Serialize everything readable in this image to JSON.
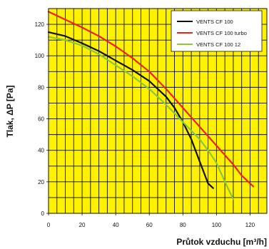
{
  "chart_data": {
    "type": "line",
    "xlabel": "Průtok vzduchu [m³/h]",
    "ylabel": "Tlak, ΔP [Pa]",
    "xlim": [
      0,
      130
    ],
    "ylim": [
      0,
      130
    ],
    "x_ticks": [
      "0",
      "20",
      "40",
      "60",
      "80",
      "100",
      "120"
    ],
    "y_ticks": [
      "0",
      "20",
      "40",
      "60",
      "80",
      "100",
      "120"
    ],
    "grid": true,
    "legend_position": "top-right",
    "series": [
      {
        "name": "VENTS CF 100",
        "color": "#111111",
        "x": [
          0,
          10,
          20,
          30,
          40,
          50,
          60,
          70,
          75,
          80,
          85,
          90,
          95,
          98
        ],
        "y": [
          115,
          112.5,
          108,
          103,
          97,
          91,
          84,
          74,
          67,
          58,
          47,
          33,
          19,
          16
        ]
      },
      {
        "name": "VENTS CF 100 turbo",
        "color": "#e8251e",
        "x": [
          0,
          10,
          20,
          30,
          40,
          50,
          60,
          70,
          80,
          90,
          100,
          110,
          115,
          122
        ],
        "y": [
          128,
          123,
          118,
          112.5,
          106,
          98.5,
          90,
          79,
          67,
          55,
          43,
          31,
          24,
          17
        ]
      },
      {
        "name": "VENTS CF 100 12",
        "color": "#8cc63f",
        "x": [
          0,
          10,
          20,
          30,
          40,
          50,
          60,
          70,
          80,
          90,
          95,
          100,
          105,
          110
        ],
        "y": [
          112,
          110,
          106.5,
          101,
          94,
          87,
          79,
          69,
          58,
          47,
          40,
          32,
          20,
          9
        ]
      }
    ]
  }
}
